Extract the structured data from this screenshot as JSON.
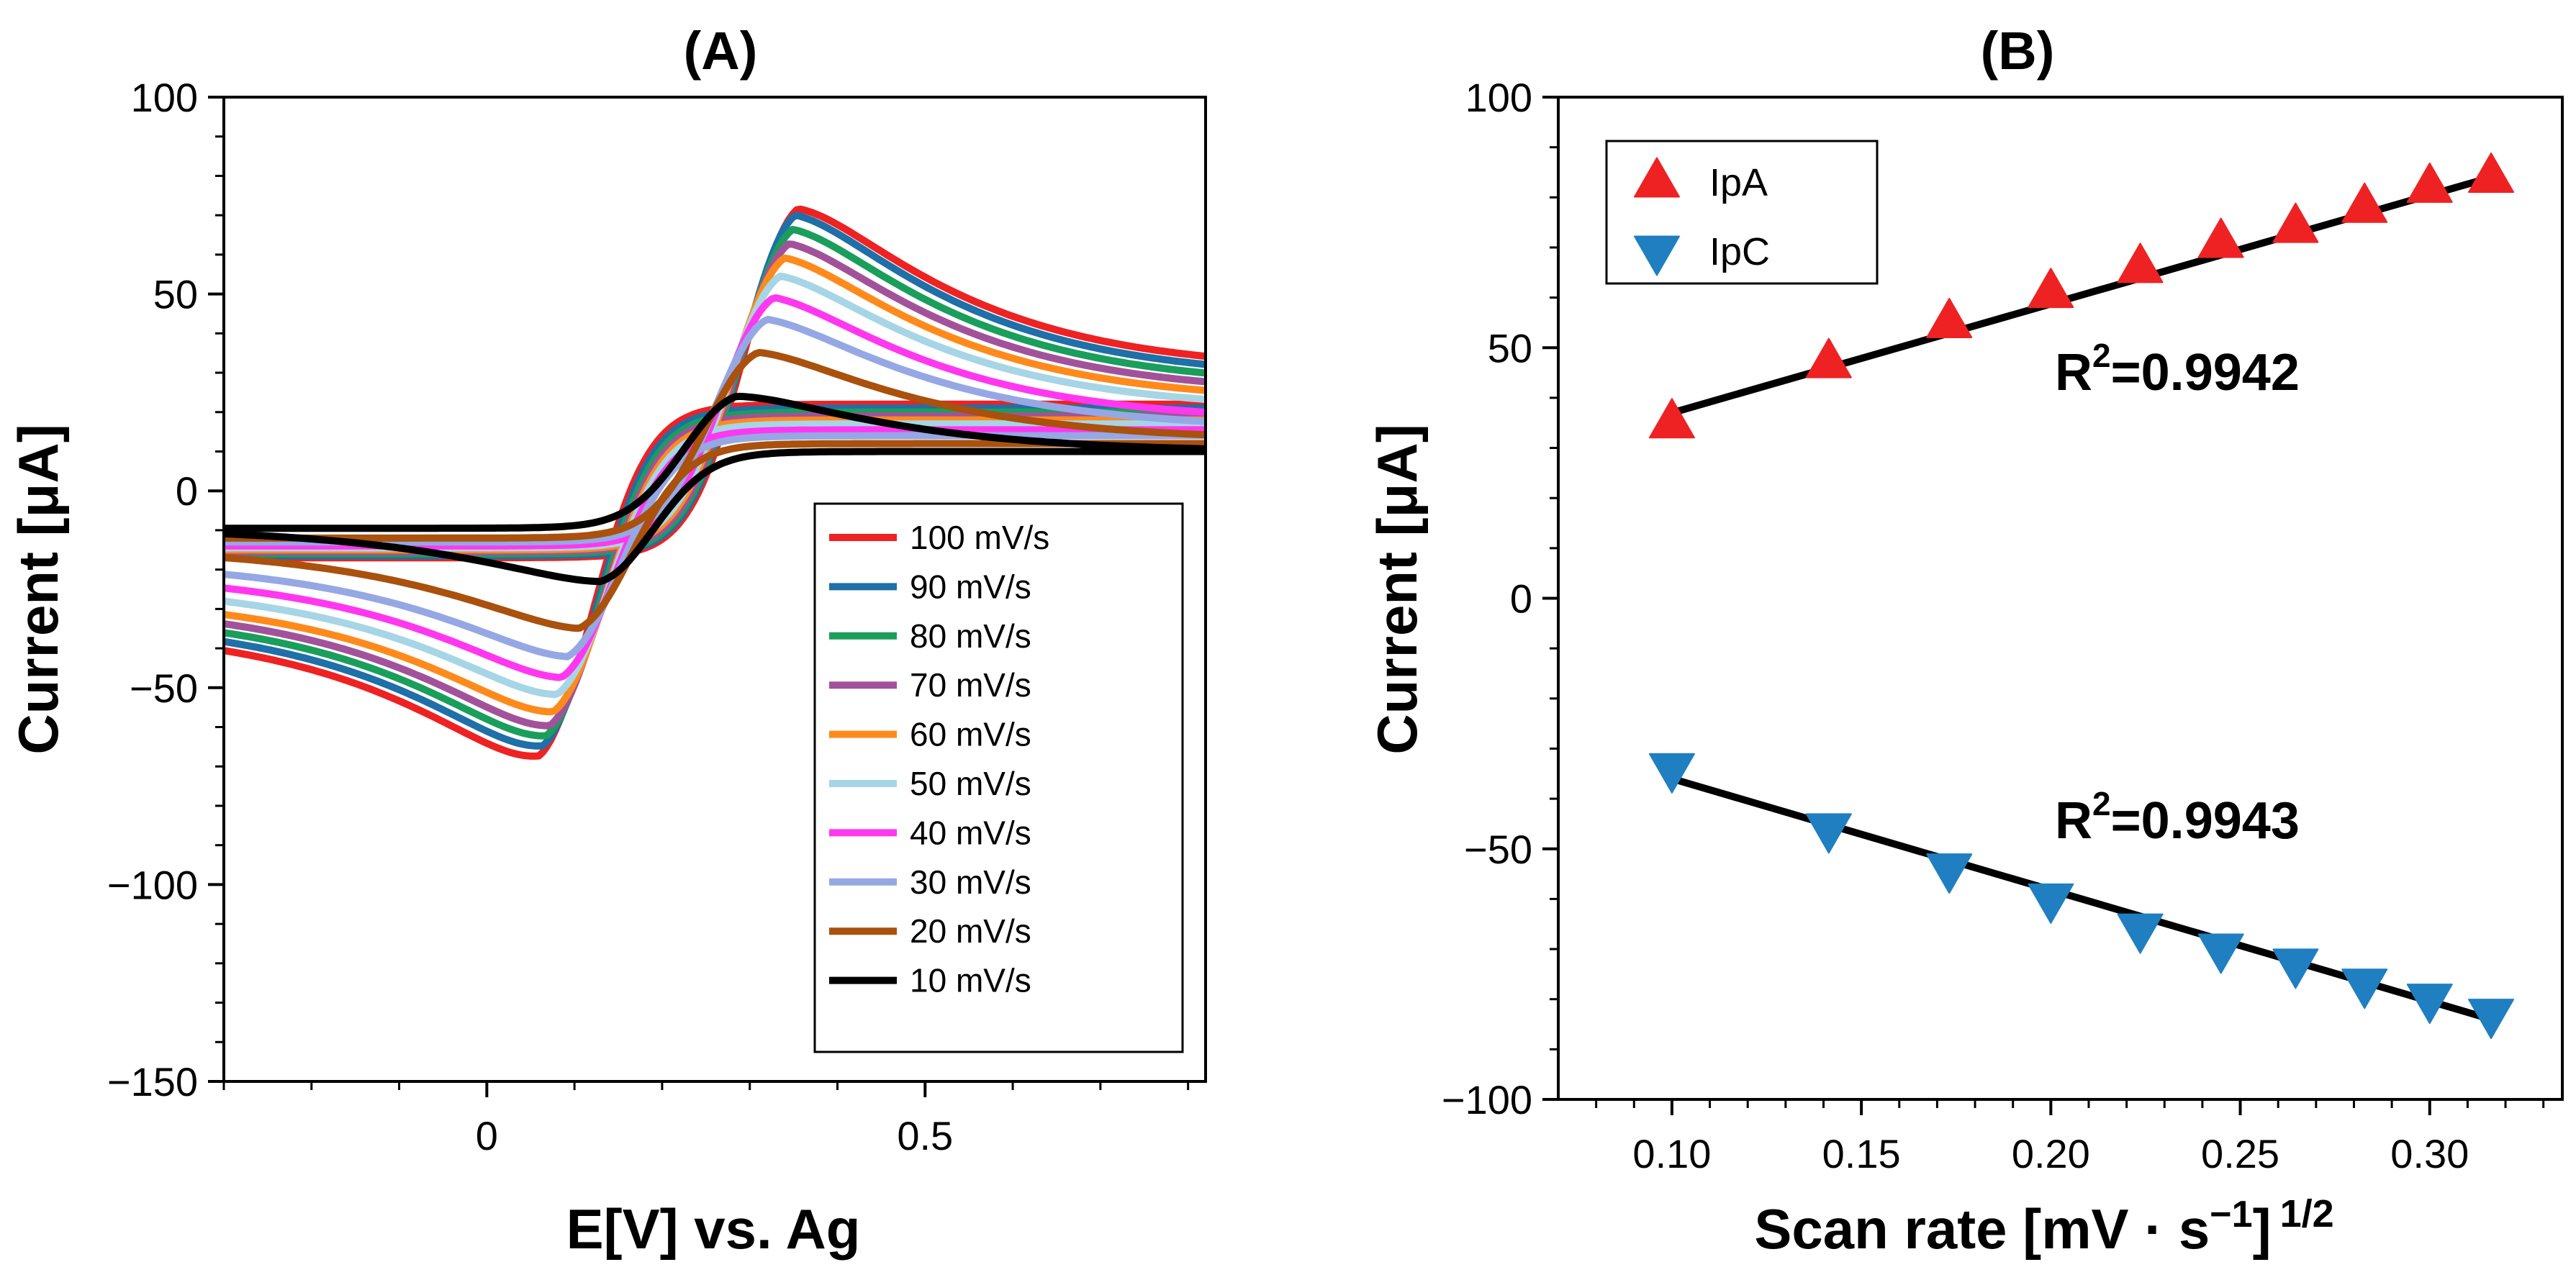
{
  "chart_data": [
    {
      "type": "line",
      "panel": "A",
      "title": "(A)",
      "xlabel": "E[V] vs. Ag",
      "ylabel": "Current [μA]",
      "xlim": [
        -0.3,
        0.82
      ],
      "ylim": [
        -150,
        100
      ],
      "xticks": [
        0,
        0.5
      ],
      "xtick_labels": [
        "0",
        "0.5"
      ],
      "yticks": [
        -150,
        -100,
        -50,
        0,
        50,
        100
      ],
      "ytick_labels": [
        "−150",
        "−100",
        "−50",
        "0",
        "50",
        "100"
      ],
      "legend_position": "lower-right",
      "curve_model": "cyclic voltammogram: upper trace (anodic, forward scan) and lower trace (cathodic, return scan); peaks listed per series",
      "series": [
        {
          "name": "100 mV/s",
          "color": "#ee2222",
          "anodic_peak": [
            0.355,
            79
          ],
          "cathodic_peak": [
            0.06,
            -76
          ],
          "upper_end": [
            0.82,
            31
          ],
          "lower_start": [
            -0.3,
            -35
          ],
          "upper_start": [
            -0.3,
            -17
          ],
          "lower_end": [
            0.82,
            22
          ]
        },
        {
          "name": "90 mV/s",
          "color": "#1f6fa8",
          "anodic_peak": [
            0.352,
            77
          ],
          "cathodic_peak": [
            0.064,
            -73
          ],
          "upper_end": [
            0.82,
            29
          ],
          "lower_start": [
            -0.3,
            -33
          ],
          "upper_start": [
            -0.3,
            -16.5
          ],
          "lower_end": [
            0.82,
            21
          ]
        },
        {
          "name": "80 mV/s",
          "color": "#1a9e5b",
          "anodic_peak": [
            0.349,
            73
          ],
          "cathodic_peak": [
            0.068,
            -70
          ],
          "upper_end": [
            0.82,
            27
          ],
          "lower_start": [
            -0.3,
            -31
          ],
          "upper_start": [
            -0.3,
            -16
          ],
          "lower_end": [
            0.82,
            20
          ]
        },
        {
          "name": "70 mV/s",
          "color": "#a2529a",
          "anodic_peak": [
            0.345,
            69
          ],
          "cathodic_peak": [
            0.072,
            -67
          ],
          "upper_end": [
            0.82,
            25
          ],
          "lower_start": [
            -0.3,
            -29
          ],
          "upper_start": [
            -0.3,
            -15.5
          ],
          "lower_end": [
            0.82,
            19
          ]
        },
        {
          "name": "60 mV/s",
          "color": "#ff8a1c",
          "anodic_peak": [
            0.34,
            65
          ],
          "cathodic_peak": [
            0.076,
            -63
          ],
          "upper_end": [
            0.82,
            23
          ],
          "lower_start": [
            -0.3,
            -27
          ],
          "upper_start": [
            -0.3,
            -15
          ],
          "lower_end": [
            0.82,
            18
          ]
        },
        {
          "name": "50 mV/s",
          "color": "#a6d5e6",
          "anodic_peak": [
            0.335,
            60
          ],
          "cathodic_peak": [
            0.08,
            -58
          ],
          "upper_end": [
            0.82,
            21
          ],
          "lower_start": [
            -0.3,
            -24
          ],
          "upper_start": [
            -0.3,
            -14.5
          ],
          "lower_end": [
            0.82,
            17
          ]
        },
        {
          "name": "40 mV/s",
          "color": "#ff38f0",
          "anodic_peak": [
            0.328,
            54
          ],
          "cathodic_peak": [
            0.085,
            -53
          ],
          "upper_end": [
            0.82,
            18
          ],
          "lower_start": [
            -0.3,
            -21
          ],
          "upper_start": [
            -0.3,
            -14
          ],
          "lower_end": [
            0.82,
            15.5
          ]
        },
        {
          "name": "30 mV/s",
          "color": "#95a8e4",
          "anodic_peak": [
            0.32,
            48
          ],
          "cathodic_peak": [
            0.092,
            -47
          ],
          "upper_end": [
            0.82,
            16
          ],
          "lower_start": [
            -0.3,
            -18
          ],
          "upper_start": [
            -0.3,
            -13
          ],
          "lower_end": [
            0.82,
            14
          ]
        },
        {
          "name": "20 mV/s",
          "color": "#a9510d",
          "anodic_peak": [
            0.31,
            39
          ],
          "cathodic_peak": [
            0.105,
            -39
          ],
          "upper_end": [
            0.82,
            13
          ],
          "lower_start": [
            -0.3,
            -14.5
          ],
          "upper_start": [
            -0.3,
            -12
          ],
          "lower_end": [
            0.82,
            12
          ]
        },
        {
          "name": "10 mV/s",
          "color": "#000000",
          "anodic_peak": [
            0.285,
            27
          ],
          "cathodic_peak": [
            0.13,
            -26
          ],
          "upper_end": [
            0.82,
            10
          ],
          "lower_start": [
            -0.3,
            -9.5
          ],
          "upper_start": [
            -0.3,
            -9.5
          ],
          "lower_end": [
            0.82,
            10
          ]
        }
      ]
    },
    {
      "type": "scatter",
      "panel": "B",
      "title": "(B)",
      "xlabel": "Scan rate [mV · s⁻¹] ¹ᐟ²",
      "xlabel_parts": {
        "main": "Scan rate [mV · s",
        "sup1": "−1",
        "close": "]",
        "sup2": "1/2"
      },
      "ylabel": "Current [μA]",
      "xlim": [
        0.07,
        0.335
      ],
      "ylim": [
        -100,
        100
      ],
      "xticks": [
        0.1,
        0.15,
        0.2,
        0.25,
        0.3
      ],
      "xtick_labels": [
        "0.10",
        "0.15",
        "0.20",
        "0.25",
        "0.30"
      ],
      "yticks": [
        -100,
        -50,
        0,
        50,
        100
      ],
      "ytick_labels": [
        "−100",
        "−50",
        "0",
        "50",
        "100"
      ],
      "legend_position": "top-left",
      "series": [
        {
          "name": "IpA",
          "marker": "triangle-up",
          "color": "#ee2222",
          "x": [
            0.1,
            0.1414,
            0.1732,
            0.2,
            0.2236,
            0.2449,
            0.2646,
            0.2828,
            0.3,
            0.3162
          ],
          "y": [
            35,
            47,
            55,
            61,
            66,
            71,
            74,
            78,
            82,
            84
          ],
          "fit": {
            "x": [
              0.1,
              0.3162
            ],
            "y": [
              37,
              84
            ]
          },
          "annotation": {
            "prefix": "R",
            "sup": "2",
            "value": "=0.9942"
          }
        },
        {
          "name": "IpC",
          "marker": "triangle-down",
          "color": "#1f7fc0",
          "x": [
            0.1,
            0.1414,
            0.1732,
            0.2,
            0.2236,
            0.2449,
            0.2646,
            0.2828,
            0.3,
            0.3162
          ],
          "y": [
            -34,
            -46,
            -54,
            -60,
            -66,
            -70,
            -73,
            -77,
            -80,
            -83
          ],
          "fit": {
            "x": [
              0.1,
              0.3162
            ],
            "y": [
              -36,
              -84
            ]
          },
          "annotation": {
            "prefix": "R",
            "sup": "2",
            "value": "=0.9943"
          }
        }
      ]
    }
  ]
}
